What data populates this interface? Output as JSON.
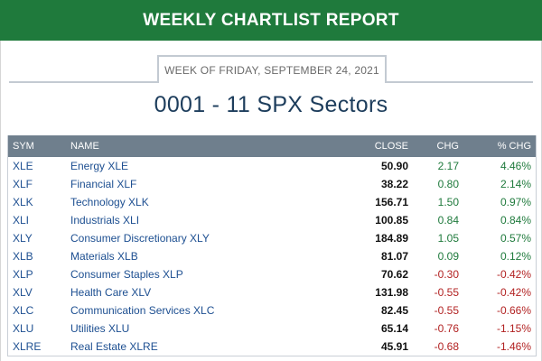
{
  "header": {
    "title": "WEEKLY CHARTLIST REPORT"
  },
  "week": {
    "label": "WEEK OF FRIDAY, SEPTEMBER 24, 2021"
  },
  "list": {
    "title": "0001 - 11 SPX Sectors"
  },
  "table": {
    "columns": {
      "sym": "SYM",
      "name": "NAME",
      "close": "CLOSE",
      "chg": "CHG",
      "pct": "% CHG"
    },
    "rows": [
      {
        "sym": "XLE",
        "name": "Energy XLE",
        "close": "50.90",
        "chg": "2.17",
        "pct": "4.46%",
        "dir": "up"
      },
      {
        "sym": "XLF",
        "name": "Financial XLF",
        "close": "38.22",
        "chg": "0.80",
        "pct": "2.14%",
        "dir": "up"
      },
      {
        "sym": "XLK",
        "name": "Technology XLK",
        "close": "156.71",
        "chg": "1.50",
        "pct": "0.97%",
        "dir": "up"
      },
      {
        "sym": "XLI",
        "name": "Industrials XLI",
        "close": "100.85",
        "chg": "0.84",
        "pct": "0.84%",
        "dir": "up"
      },
      {
        "sym": "XLY",
        "name": "Consumer Discretionary XLY",
        "close": "184.89",
        "chg": "1.05",
        "pct": "0.57%",
        "dir": "up"
      },
      {
        "sym": "XLB",
        "name": "Materials XLB",
        "close": "81.07",
        "chg": "0.09",
        "pct": "0.12%",
        "dir": "up"
      },
      {
        "sym": "XLP",
        "name": "Consumer Staples XLP",
        "close": "70.62",
        "chg": "-0.30",
        "pct": "-0.42%",
        "dir": "down"
      },
      {
        "sym": "XLV",
        "name": "Health Care XLV",
        "close": "131.98",
        "chg": "-0.55",
        "pct": "-0.42%",
        "dir": "down"
      },
      {
        "sym": "XLC",
        "name": "Communication Services XLC",
        "close": "82.45",
        "chg": "-0.55",
        "pct": "-0.66%",
        "dir": "down"
      },
      {
        "sym": "XLU",
        "name": "Utilities XLU",
        "close": "65.14",
        "chg": "-0.76",
        "pct": "-1.15%",
        "dir": "down"
      },
      {
        "sym": "XLRE",
        "name": "Real Estate XLRE",
        "close": "45.91",
        "chg": "-0.68",
        "pct": "-1.46%",
        "dir": "down"
      }
    ]
  },
  "colors": {
    "header_bg": "#1f7a3c",
    "positive": "#1f7a3c",
    "negative": "#b22222",
    "link": "#1d4f91",
    "table_header_bg": "#6f7f8d"
  }
}
